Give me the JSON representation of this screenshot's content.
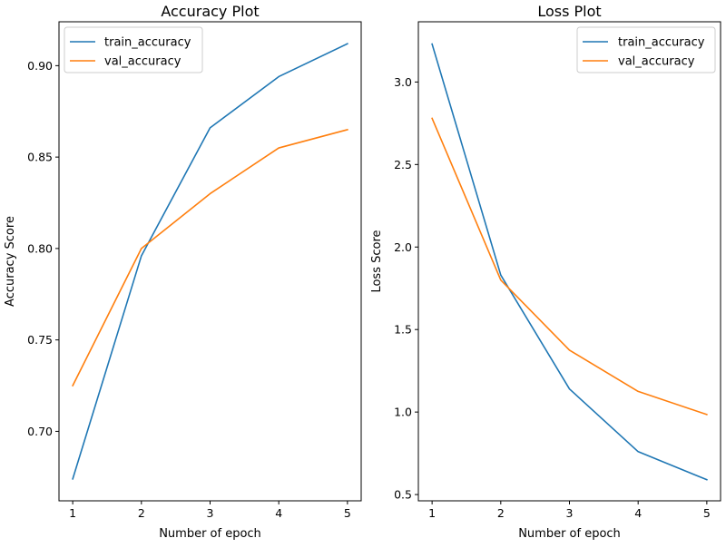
{
  "chart_data": [
    {
      "type": "line",
      "title": "Accuracy Plot",
      "xlabel": "Number of epoch",
      "ylabel": "Accuracy Score",
      "x": [
        1,
        2,
        3,
        4,
        5
      ],
      "xticks": [
        "1",
        "2",
        "3",
        "4",
        "5"
      ],
      "yticks": [
        "0.70",
        "0.75",
        "0.80",
        "0.85",
        "0.90"
      ],
      "xlim": [
        0.8,
        5.2
      ],
      "ylim": [
        0.662,
        0.924
      ],
      "grid": false,
      "legend_position": "top-left",
      "series": [
        {
          "name": "train_accuracy",
          "color": "#1f77b4",
          "values": [
            0.674,
            0.796,
            0.866,
            0.894,
            0.912
          ]
        },
        {
          "name": "val_accuracy",
          "color": "#ff7f0e",
          "values": [
            0.725,
            0.8,
            0.83,
            0.855,
            0.865
          ]
        }
      ]
    },
    {
      "type": "line",
      "title": "Loss Plot",
      "xlabel": "Number of epoch",
      "ylabel": "Loss Score",
      "x": [
        1,
        2,
        3,
        4,
        5
      ],
      "xticks": [
        "1",
        "2",
        "3",
        "4",
        "5"
      ],
      "yticks": [
        "0.5",
        "1.0",
        "1.5",
        "2.0",
        "2.5",
        "3.0"
      ],
      "xlim": [
        0.8,
        5.2
      ],
      "ylim": [
        0.462,
        3.365
      ],
      "grid": false,
      "legend_position": "top-right",
      "series": [
        {
          "name": "train_accuracy",
          "color": "#1f77b4",
          "values": [
            3.23,
            1.83,
            1.14,
            0.76,
            0.59
          ]
        },
        {
          "name": "val_accuracy",
          "color": "#ff7f0e",
          "values": [
            2.78,
            1.8,
            1.375,
            1.125,
            0.985
          ]
        }
      ]
    }
  ]
}
